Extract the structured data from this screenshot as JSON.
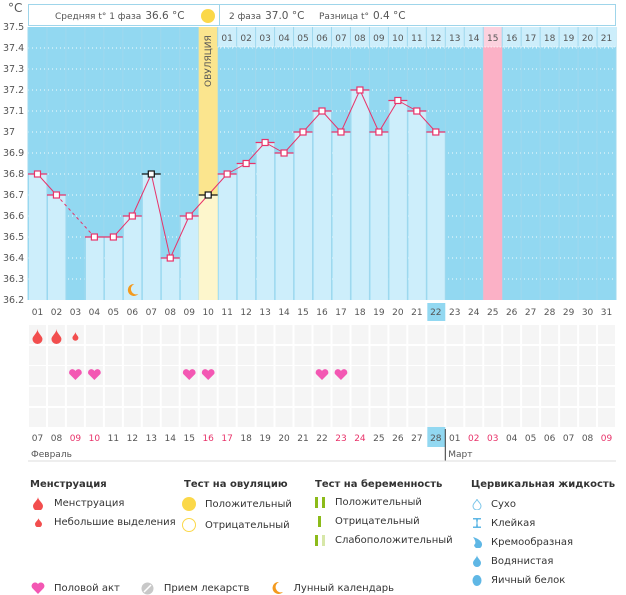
{
  "header": {
    "unit": "°C",
    "phase1_label": "Средняя t° 1 фаза",
    "phase1_value": "36.6 °C",
    "phase2_label": "2 фаза",
    "phase2_value": "37.0 °C",
    "diff_label": "Разница t°",
    "diff_value": "0.4 °C"
  },
  "colors": {
    "bg_blue": "#92d8f1",
    "bar_fill": "#cdeefb",
    "ovulation": "#fbe58e",
    "ovulation_low": "#fdf6cc",
    "pink_day": "#fbb1c6",
    "line": "#e8336a",
    "highlight": "#92d8f1",
    "red_text": "#e8336a",
    "drop": "#f24e4e",
    "heart": "#f357b3",
    "moon": "#f39a1e"
  },
  "chart_data": {
    "type": "line",
    "title": "",
    "xlabel": "",
    "ylabel": "°C",
    "ylim": [
      36.2,
      37.5
    ],
    "yticks": [
      "36.2",
      "36.3",
      "36.4",
      "36.5",
      "36.6",
      "36.7",
      "36.8",
      "36.9",
      "37",
      "37.1",
      "37.2",
      "37.3",
      "37.4",
      "37.5"
    ],
    "cycle_days": [
      "01",
      "02",
      "03",
      "04",
      "05",
      "06",
      "07",
      "08",
      "09",
      "10",
      "11",
      "12",
      "13",
      "14",
      "15",
      "16",
      "17",
      "18",
      "19",
      "20",
      "21",
      "22",
      "23",
      "24",
      "25",
      "26",
      "27",
      "28",
      "29",
      "30",
      "31"
    ],
    "current_day": "22",
    "temperatures": [
      36.8,
      36.7,
      null,
      36.5,
      36.5,
      36.6,
      36.8,
      36.4,
      36.6,
      36.7,
      36.8,
      36.85,
      36.95,
      36.9,
      37.0,
      37.1,
      37.0,
      37.2,
      37.0,
      37.15,
      37.1,
      37.0,
      null,
      null,
      null,
      null,
      null,
      null,
      null,
      null,
      null
    ],
    "excluded_points": [
      7,
      10
    ],
    "ovulation_day": 10,
    "ovulation_label": "ОВУЛЯЦИЯ",
    "post_ovulation_numbers": [
      "01",
      "02",
      "03",
      "04",
      "05",
      "06",
      "07",
      "08",
      "09",
      "10",
      "11",
      "12",
      "13",
      "14",
      "15",
      "16",
      "17",
      "18",
      "19",
      "20",
      "21"
    ],
    "expected_period_day": 25,
    "menstruation": {
      "1": "heavy",
      "2": "heavy",
      "3": "light"
    },
    "intercourse_days": [
      3,
      4,
      9,
      10,
      16,
      17
    ],
    "moon_days": [
      6
    ],
    "dates": [
      "07",
      "08",
      "09",
      "10",
      "11",
      "12",
      "13",
      "14",
      "15",
      "16",
      "17",
      "18",
      "19",
      "20",
      "21",
      "22",
      "23",
      "24",
      "25",
      "26",
      "27",
      "28",
      "01",
      "02",
      "03",
      "04",
      "05",
      "06",
      "07",
      "08",
      "09"
    ],
    "weekend_date_indexes": [
      2,
      3,
      9,
      10,
      16,
      17,
      23,
      24,
      30
    ],
    "today_date_index": 21,
    "month_labels": [
      {
        "label": "Февраль",
        "start_index": 0
      },
      {
        "label": "Март",
        "start_index": 22
      }
    ]
  },
  "legend": {
    "menstruation": {
      "title": "Менструация",
      "items": [
        "Менструация",
        "Небольшие выделения"
      ]
    },
    "ovulation_test": {
      "title": "Тест на овуляцию",
      "items": [
        "Положительный",
        "Отрицательный"
      ]
    },
    "pregnancy_test": {
      "title": "Тест на беременность",
      "items": [
        "Положительный",
        "Отрицательный",
        "Слабоположительный"
      ]
    },
    "cervical_fluid": {
      "title": "Цервикальная жидкость",
      "items": [
        "Сухо",
        "Клейкая",
        "Кремообразная",
        "Водянистая",
        "Яичный белок"
      ]
    },
    "other": [
      "Половой акт",
      "Прием лекарств",
      "Лунный календарь"
    ]
  }
}
